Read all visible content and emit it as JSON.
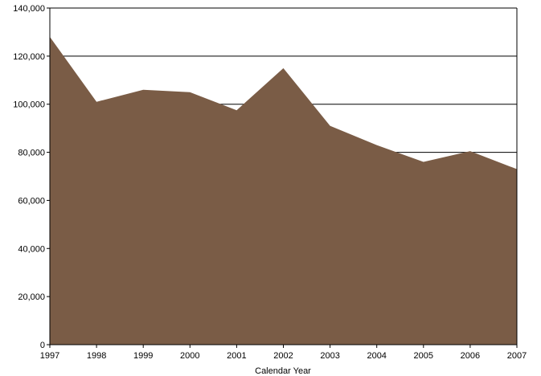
{
  "chart_data": {
    "type": "area",
    "title": "",
    "xlabel": "Calendar Year",
    "ylabel": "",
    "categories": [
      "1997",
      "1998",
      "1999",
      "2000",
      "2001",
      "2002",
      "2003",
      "2004",
      "2005",
      "2006",
      "2007"
    ],
    "values": [
      128000,
      101000,
      106000,
      105000,
      97500,
      115000,
      91000,
      83000,
      76000,
      80500,
      73000
    ],
    "ylim": [
      0,
      140000
    ],
    "yticks": [
      0,
      20000,
      40000,
      60000,
      80000,
      100000,
      120000,
      140000
    ],
    "ytick_labels": [
      "0",
      "20,000",
      "40,000",
      "60,000",
      "80,000",
      "100,000",
      "120,000",
      "140,000"
    ],
    "grid": "horizontal at 100,000 and 120,000",
    "legend": "none",
    "colors": {
      "area": "#7a5c46",
      "axis": "#000000",
      "grid": "#000000"
    }
  }
}
